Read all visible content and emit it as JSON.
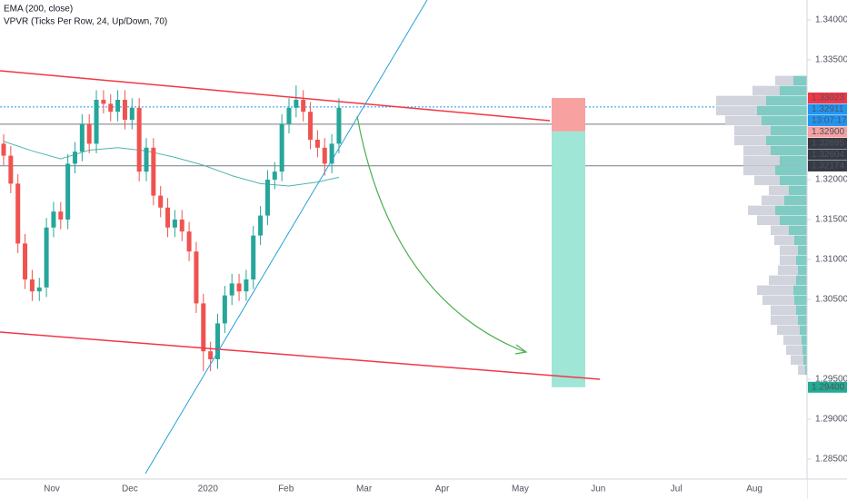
{
  "chart_data": {
    "type": "candlestick",
    "indicators": [
      "EMA (200, close)",
      "VPVR (Ticks Per Row, 24, Up/Down, 70)"
    ],
    "categories": [
      "Nov",
      "Dec",
      "2020",
      "Feb",
      "Mar",
      "Apr",
      "May",
      "Jun",
      "Jul",
      "Aug"
    ],
    "up_color": "#26a69a",
    "down_color": "#ef5350",
    "open": [
      1.3245,
      1.323,
      1.3195,
      1.312,
      1.3075,
      1.306,
      1.3065,
      1.314,
      1.316,
      1.315,
      1.322,
      1.3235,
      1.327,
      1.3245,
      1.33,
      1.3295,
      1.3285,
      1.33,
      1.3275,
      1.329,
      1.321,
      1.324,
      1.318,
      1.3165,
      1.314,
      1.315,
      1.3135,
      1.311,
      1.3045,
      1.2985,
      1.2975,
      1.302,
      1.3055,
      1.307,
      1.306,
      1.3075,
      1.313,
      1.3155,
      1.32,
      1.321,
      1.327,
      1.329,
      1.33,
      1.3285,
      1.325,
      1.324,
      1.322,
      1.3245
    ],
    "high": [
      1.3257,
      1.3242,
      1.3207,
      1.3132,
      1.3087,
      1.3077,
      1.3152,
      1.3172,
      1.3172,
      1.3232,
      1.3247,
      1.3282,
      1.3282,
      1.3312,
      1.3312,
      1.3307,
      1.3312,
      1.3312,
      1.3302,
      1.3302,
      1.3252,
      1.3252,
      1.3192,
      1.3177,
      1.3162,
      1.3162,
      1.3147,
      1.3122,
      1.3057,
      1.2997,
      1.3032,
      1.3067,
      1.3082,
      1.3082,
      1.3087,
      1.3142,
      1.3167,
      1.3212,
      1.3222,
      1.3282,
      1.3302,
      1.3318,
      1.3312,
      1.3297,
      1.3262,
      1.3252,
      1.3257,
      1.3302
    ],
    "low": [
      1.3218,
      1.3183,
      1.3108,
      1.3063,
      1.3048,
      1.3048,
      1.3053,
      1.3128,
      1.3138,
      1.3138,
      1.3208,
      1.3223,
      1.3233,
      1.3233,
      1.3283,
      1.3273,
      1.3273,
      1.3263,
      1.3263,
      1.3198,
      1.3198,
      1.3168,
      1.3153,
      1.3128,
      1.3128,
      1.3123,
      1.3098,
      1.3033,
      1.296,
      1.296,
      1.2963,
      1.3008,
      1.3043,
      1.3048,
      1.3048,
      1.3063,
      1.3118,
      1.3143,
      1.3188,
      1.3198,
      1.3258,
      1.3278,
      1.3273,
      1.3238,
      1.3228,
      1.3205,
      1.3208,
      1.3233
    ],
    "close": [
      1.323,
      1.3195,
      1.312,
      1.3075,
      1.306,
      1.3065,
      1.314,
      1.316,
      1.315,
      1.322,
      1.3235,
      1.327,
      1.3245,
      1.33,
      1.3295,
      1.3285,
      1.33,
      1.3275,
      1.329,
      1.321,
      1.324,
      1.318,
      1.3165,
      1.314,
      1.315,
      1.3135,
      1.311,
      1.3045,
      1.2985,
      1.2975,
      1.302,
      1.3055,
      1.307,
      1.306,
      1.3075,
      1.313,
      1.3155,
      1.32,
      1.321,
      1.327,
      1.329,
      1.33,
      1.3285,
      1.325,
      1.324,
      1.322,
      1.3245,
      1.329
    ],
    "ema": {
      "color": "#4db6ac",
      "x": [
        0,
        4,
        8,
        12,
        16,
        20,
        24,
        28,
        32,
        36,
        40,
        44,
        47
      ],
      "values": [
        1.3248,
        1.3236,
        1.3226,
        1.3237,
        1.324,
        1.3236,
        1.3228,
        1.3218,
        1.3205,
        1.3195,
        1.3192,
        1.3197,
        1.3203
      ]
    },
    "ylim": [
      1.2825,
      1.3425
    ],
    "yticks": [
      {
        "value": 1.34,
        "label": "1.34000"
      },
      {
        "value": 1.335,
        "label": "1.33500"
      },
      {
        "value": 1.32,
        "label": "1.32000"
      },
      {
        "value": 1.315,
        "label": "1.31500"
      },
      {
        "value": 1.31,
        "label": "1.31000"
      },
      {
        "value": 1.305,
        "label": "1.30500"
      },
      {
        "value": 1.295,
        "label": "1.29500"
      },
      {
        "value": 1.29,
        "label": "1.29000"
      },
      {
        "value": 1.285,
        "label": "1.28500"
      }
    ],
    "price_badges": [
      {
        "value": 1.33023,
        "label": "1.33023",
        "color": "#f23645"
      },
      {
        "value": 1.32911,
        "label": "1.32911",
        "color": "#2196f3"
      },
      {
        "value": 1.329,
        "label": "1.32900",
        "color": "#f7a1a1"
      },
      {
        "value": 1.32695,
        "label": "1.32695",
        "color": "#363a45"
      },
      {
        "value": 1.32604,
        "label": "1.32604",
        "color": "#363a45"
      },
      {
        "value": 1.32174,
        "label": "1.32174",
        "color": "#363a45"
      },
      {
        "value": 1.294,
        "label": "1.29400",
        "color": "#22ab94"
      }
    ],
    "countdown": "13:07:17",
    "volume_profile": {
      "up_color": "#80cbc4",
      "down_color": "#d1d4dc",
      "price": [
        1.2955,
        1.29675,
        1.298,
        1.29925,
        1.3005,
        1.30175,
        1.303,
        1.30425,
        1.3055,
        1.30675,
        1.308,
        1.30925,
        1.3105,
        1.31175,
        1.313,
        1.31425,
        1.3155,
        1.31675,
        1.318,
        1.31925,
        1.3205,
        1.32175,
        1.323,
        1.32425,
        1.3255,
        1.32675,
        1.328,
        1.32925,
        1.3305,
        1.33175
      ],
      "up": [
        2,
        4,
        5,
        6,
        8,
        10,
        12,
        14,
        15,
        12,
        10,
        12,
        10,
        14,
        20,
        30,
        35,
        25,
        20,
        30,
        35,
        30,
        40,
        45,
        40,
        50,
        55,
        45,
        30,
        15
      ],
      "down": [
        8,
        14,
        18,
        20,
        25,
        30,
        28,
        35,
        40,
        30,
        22,
        18,
        20,
        22,
        20,
        25,
        30,
        25,
        22,
        28,
        35,
        40,
        30,
        35,
        40,
        40,
        45,
        55,
        30,
        20
      ]
    }
  }
}
